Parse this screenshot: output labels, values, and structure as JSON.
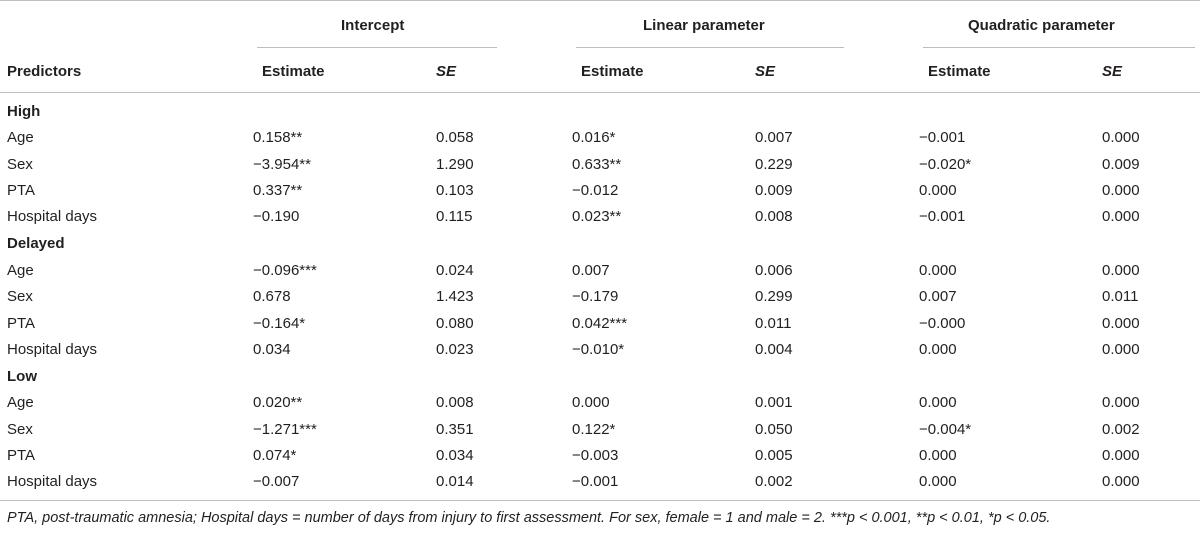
{
  "groups": [
    {
      "label": "Intercept"
    },
    {
      "label": "Linear parameter"
    },
    {
      "label": "Quadratic parameter"
    }
  ],
  "header": {
    "predictors": "Predictors",
    "estimate": "Estimate",
    "se": "SE"
  },
  "sections": [
    {
      "label": "High",
      "rows": [
        {
          "name": "Age",
          "vals": [
            "0.158**",
            "0.058",
            "0.016*",
            "0.007",
            "−0.001",
            "0.000"
          ]
        },
        {
          "name": "Sex",
          "vals": [
            "−3.954**",
            "1.290",
            "0.633**",
            "0.229",
            "−0.020*",
            "0.009"
          ]
        },
        {
          "name": "PTA",
          "vals": [
            "0.337**",
            "0.103",
            "−0.012",
            "0.009",
            "0.000",
            "0.000"
          ]
        },
        {
          "name": "Hospital days",
          "vals": [
            "−0.190",
            "0.115",
            "0.023**",
            "0.008",
            "−0.001",
            "0.000"
          ]
        }
      ]
    },
    {
      "label": "Delayed",
      "rows": [
        {
          "name": "Age",
          "vals": [
            "−0.096***",
            "0.024",
            "0.007",
            "0.006",
            "0.000",
            "0.000"
          ]
        },
        {
          "name": "Sex",
          "vals": [
            "0.678",
            "1.423",
            "−0.179",
            "0.299",
            "0.007",
            "0.011"
          ]
        },
        {
          "name": "PTA",
          "vals": [
            "−0.164*",
            "0.080",
            "0.042***",
            "0.011",
            "−0.000",
            "0.000"
          ]
        },
        {
          "name": "Hospital days",
          "vals": [
            "0.034",
            "0.023",
            "−0.010*",
            "0.004",
            "0.000",
            "0.000"
          ]
        }
      ]
    },
    {
      "label": "Low",
      "rows": [
        {
          "name": "Age",
          "vals": [
            "0.020**",
            "0.008",
            "0.000",
            "0.001",
            "0.000",
            "0.000"
          ]
        },
        {
          "name": "Sex",
          "vals": [
            "−1.271***",
            "0.351",
            "0.122*",
            "0.050",
            "−0.004*",
            "0.002"
          ]
        },
        {
          "name": "PTA",
          "vals": [
            "0.074*",
            "0.034",
            "−0.003",
            "0.005",
            "0.000",
            "0.000"
          ]
        },
        {
          "name": "Hospital days",
          "vals": [
            "−0.007",
            "0.014",
            "−0.001",
            "0.002",
            "0.000",
            "0.000"
          ]
        }
      ]
    }
  ],
  "footnote": "PTA, post-traumatic amnesia; Hospital days = number of days from injury to first assessment. For sex, female = 1 and male = 2. ***p < 0.001, **p < 0.01, *p < 0.05."
}
